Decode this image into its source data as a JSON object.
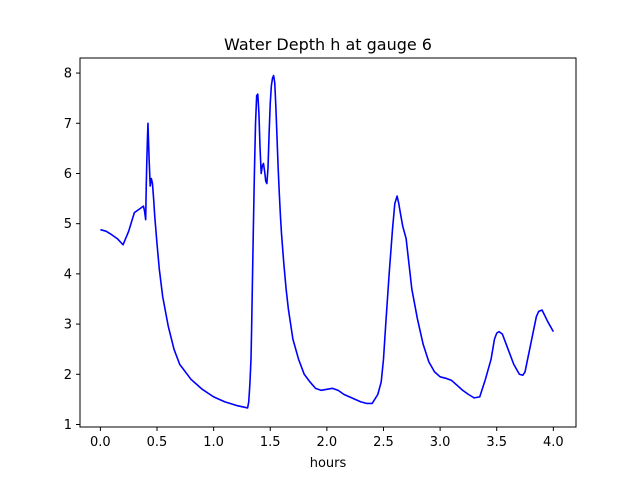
{
  "chart_data": {
    "type": "line",
    "title": "Water Depth h at gauge 6",
    "xlabel": "hours",
    "ylabel": "",
    "xlim": [
      -0.18,
      4.2
    ],
    "ylim": [
      0.95,
      8.3
    ],
    "xticks": [
      0.0,
      0.5,
      1.0,
      1.5,
      2.0,
      2.5,
      3.0,
      3.5,
      4.0
    ],
    "xtick_labels": [
      "0.0",
      "0.5",
      "1.0",
      "1.5",
      "2.0",
      "2.5",
      "3.0",
      "3.5",
      "4.0"
    ],
    "yticks": [
      1,
      2,
      3,
      4,
      5,
      6,
      7,
      8
    ],
    "ytick_labels": [
      "1",
      "2",
      "3",
      "4",
      "5",
      "6",
      "7",
      "8"
    ],
    "grid": false,
    "legend": false,
    "series": [
      {
        "color": "#0000ff",
        "x": [
          0.0,
          0.05,
          0.1,
          0.15,
          0.2,
          0.25,
          0.3,
          0.35,
          0.38,
          0.39,
          0.4,
          0.405,
          0.41,
          0.415,
          0.42,
          0.43,
          0.44,
          0.45,
          0.46,
          0.47,
          0.48,
          0.5,
          0.52,
          0.55,
          0.6,
          0.65,
          0.7,
          0.8,
          0.9,
          1.0,
          1.1,
          1.2,
          1.26,
          1.3,
          1.31,
          1.32,
          1.33,
          1.335,
          1.34,
          1.35,
          1.36,
          1.37,
          1.38,
          1.39,
          1.4,
          1.41,
          1.42,
          1.43,
          1.44,
          1.45,
          1.46,
          1.47,
          1.48,
          1.49,
          1.5,
          1.51,
          1.52,
          1.53,
          1.54,
          1.55,
          1.56,
          1.57,
          1.58,
          1.59,
          1.6,
          1.62,
          1.64,
          1.66,
          1.7,
          1.75,
          1.8,
          1.85,
          1.9,
          1.95,
          2.0,
          2.05,
          2.1,
          2.15,
          2.2,
          2.25,
          2.3,
          2.35,
          2.4,
          2.45,
          2.48,
          2.5,
          2.52,
          2.55,
          2.58,
          2.6,
          2.62,
          2.635,
          2.65,
          2.67,
          2.7,
          2.72,
          2.75,
          2.8,
          2.85,
          2.9,
          2.95,
          3.0,
          3.05,
          3.1,
          3.15,
          3.2,
          3.25,
          3.3,
          3.35,
          3.4,
          3.45,
          3.48,
          3.5,
          3.52,
          3.55,
          3.6,
          3.65,
          3.7,
          3.73,
          3.75,
          3.8,
          3.85,
          3.87,
          3.9,
          3.95,
          4.0
        ],
        "y": [
          4.88,
          4.85,
          4.78,
          4.7,
          4.58,
          4.85,
          5.22,
          5.3,
          5.35,
          5.25,
          5.08,
          5.75,
          6.25,
          6.65,
          7.0,
          6.3,
          5.75,
          5.9,
          5.8,
          5.5,
          5.15,
          4.6,
          4.1,
          3.55,
          2.95,
          2.5,
          2.2,
          1.9,
          1.7,
          1.55,
          1.45,
          1.38,
          1.35,
          1.33,
          1.45,
          1.8,
          2.3,
          2.85,
          3.5,
          4.8,
          6.0,
          7.0,
          7.55,
          7.58,
          7.2,
          6.5,
          6.0,
          6.15,
          6.2,
          6.05,
          5.85,
          5.8,
          6.1,
          6.8,
          7.4,
          7.75,
          7.9,
          7.95,
          7.8,
          7.3,
          6.7,
          6.1,
          5.6,
          5.15,
          4.78,
          4.2,
          3.7,
          3.3,
          2.7,
          2.3,
          2.0,
          1.85,
          1.72,
          1.68,
          1.7,
          1.72,
          1.68,
          1.6,
          1.55,
          1.5,
          1.45,
          1.42,
          1.42,
          1.6,
          1.85,
          2.3,
          3.0,
          4.0,
          4.9,
          5.4,
          5.55,
          5.4,
          5.2,
          4.95,
          4.7,
          4.3,
          3.7,
          3.1,
          2.6,
          2.25,
          2.05,
          1.95,
          1.92,
          1.88,
          1.78,
          1.68,
          1.6,
          1.53,
          1.55,
          1.9,
          2.3,
          2.7,
          2.82,
          2.85,
          2.8,
          2.5,
          2.2,
          2.0,
          1.98,
          2.05,
          2.6,
          3.15,
          3.25,
          3.28,
          3.05,
          2.85
        ]
      }
    ]
  }
}
